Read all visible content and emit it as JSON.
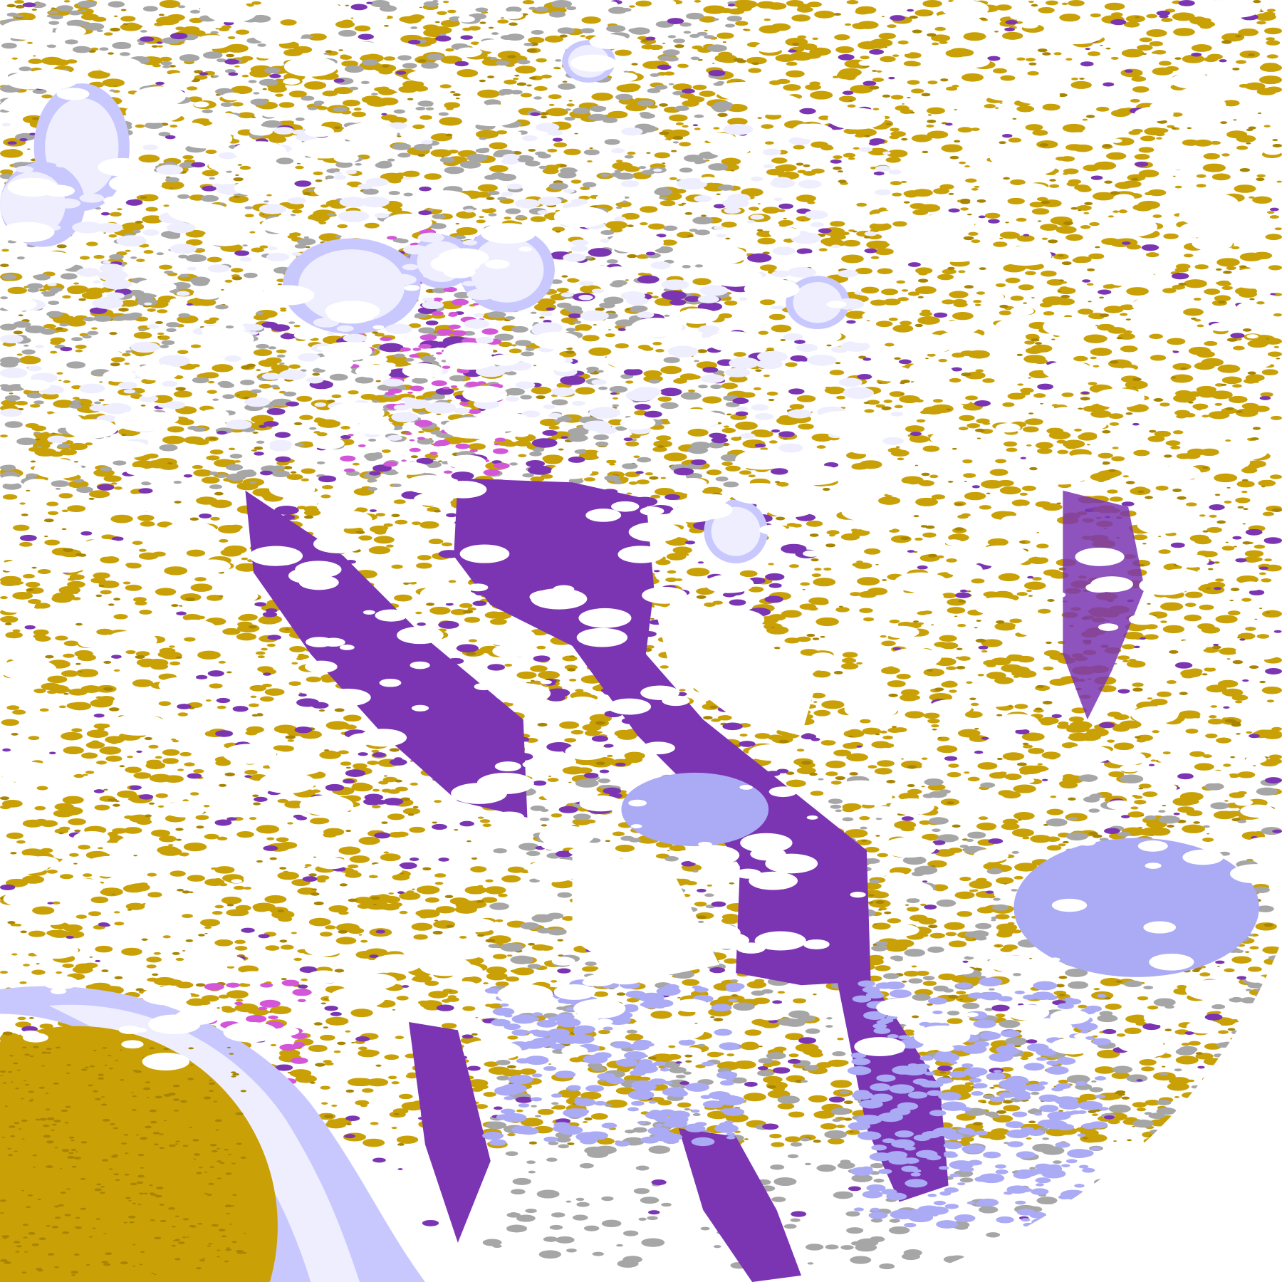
{
  "map": {
    "palette": {
      "background": "#ffffff",
      "gold": "#c9a006",
      "gold_dark": "#a88400",
      "purple": "#7b35b3",
      "magenta": "#d456d8",
      "lavender": "#aaaaf5",
      "lavender_light": "#c8c8ff",
      "pale": "#eeeeff",
      "gray": "#a6a6a6"
    }
  }
}
